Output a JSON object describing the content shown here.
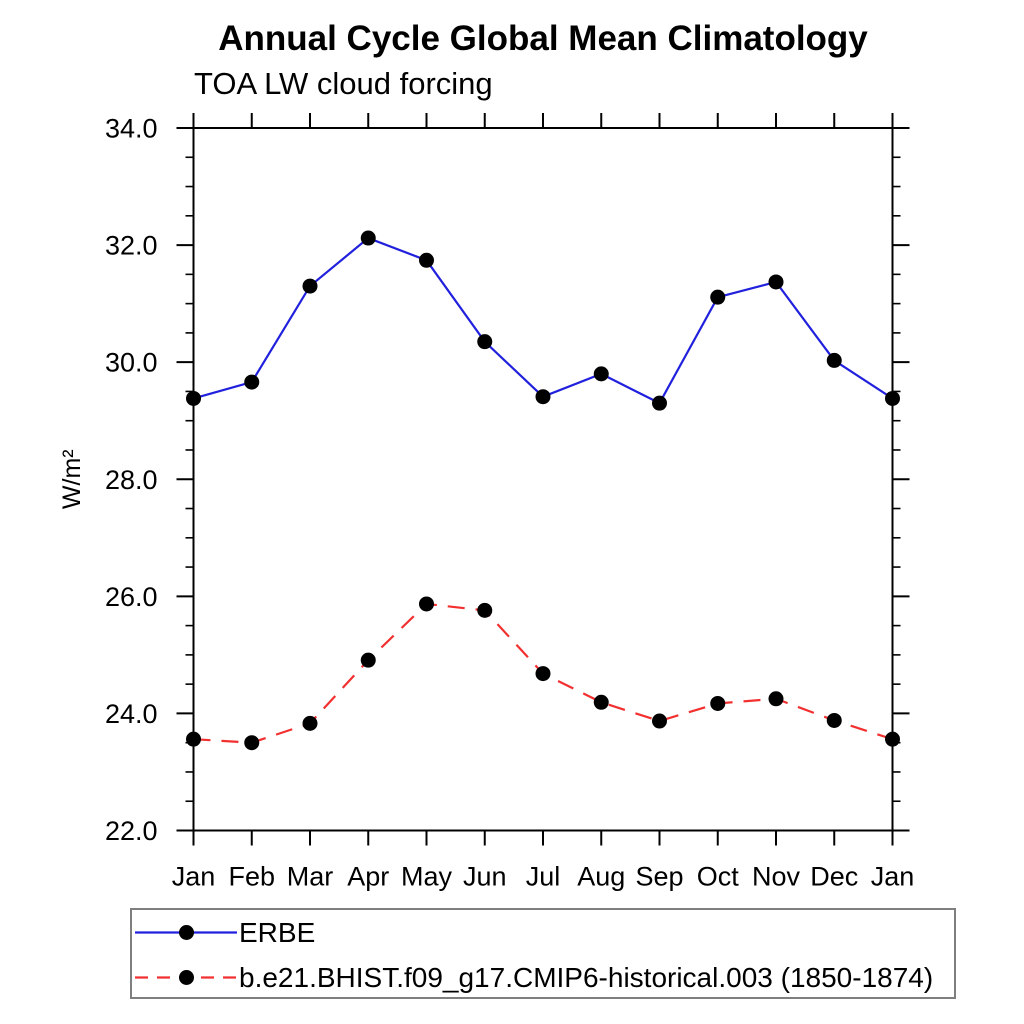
{
  "chart_data": {
    "type": "line",
    "title": "Annual Cycle Global Mean Climatology",
    "subtitle": "TOA LW cloud forcing",
    "xlabel": "",
    "ylabel": "W/m²",
    "x_categories": [
      "Jan",
      "Feb",
      "Mar",
      "Apr",
      "May",
      "Jun",
      "Jul",
      "Aug",
      "Sep",
      "Oct",
      "Nov",
      "Dec",
      "Jan"
    ],
    "ylim": [
      22.0,
      34.0
    ],
    "ytick_interval": 2.0,
    "ytick_minor_interval": 0.5,
    "ytick_labels": [
      "22.0",
      "24.0",
      "26.0",
      "28.0",
      "30.0",
      "32.0",
      "34.0"
    ],
    "grid": false,
    "legend_position": "bottom-left box",
    "series": [
      {
        "name": "ERBE",
        "color": "#2121dd",
        "line_style": "solid",
        "marker": "filled-circle",
        "marker_color": "#000000",
        "values": [
          29.38,
          29.66,
          31.3,
          32.12,
          31.74,
          30.35,
          29.41,
          29.8,
          29.3,
          31.11,
          31.37,
          30.03,
          29.38
        ]
      },
      {
        "name": "b.e21.BHIST.f09_g17.CMIP6-historical.003 (1850-1874)",
        "color": "#f23030",
        "line_style": "dashed",
        "marker": "filled-circle",
        "marker_color": "#000000",
        "values": [
          23.56,
          23.5,
          23.83,
          24.91,
          25.87,
          25.76,
          24.68,
          24.19,
          23.87,
          24.17,
          24.25,
          23.88,
          23.56
        ]
      }
    ]
  },
  "colors": {
    "axis": "#000000",
    "text": "#000000",
    "legend_border": "#7f7f7f",
    "background": "#ffffff"
  }
}
